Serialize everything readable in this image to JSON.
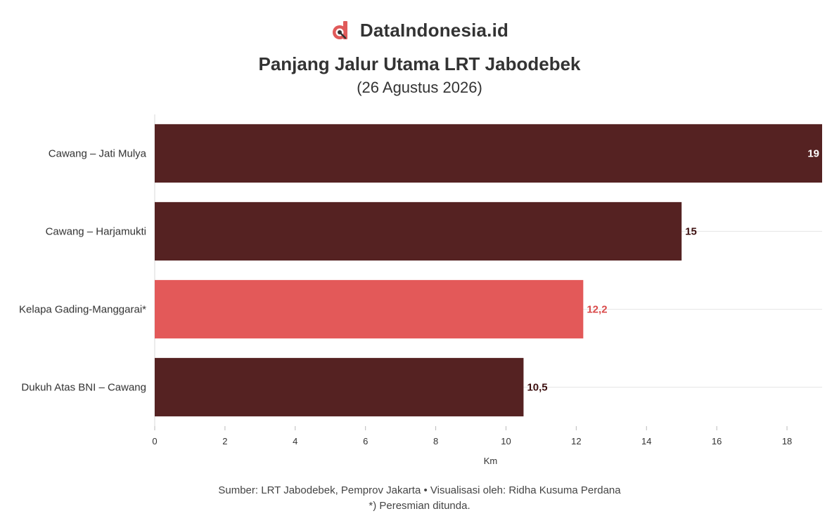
{
  "brand": {
    "name": "DataIndonesia.id",
    "logo_icon": "dataindonesia-logo-icon",
    "logo_color": "#e05a5a"
  },
  "chart_data": {
    "type": "bar",
    "orientation": "horizontal",
    "title": "Panjang Jalur Utama LRT Jabodebek",
    "subtitle": "(26 Agustus 2026)",
    "xlabel": "Km",
    "ylabel": "",
    "xlim": [
      0,
      19
    ],
    "xticks": [
      0,
      2,
      4,
      6,
      8,
      10,
      12,
      14,
      16,
      18
    ],
    "grid": true,
    "legend": "none",
    "categories": [
      "Cawang – Jati Mulya",
      "Cawang – Harjamukti",
      "Kelapa Gading-Manggarai*",
      "Dukuh Atas BNI – Cawang"
    ],
    "values": [
      19,
      15,
      12.2,
      10.5
    ],
    "value_labels": [
      "19",
      "15",
      "12,2",
      "10,5"
    ],
    "bar_colors": [
      "#552222",
      "#552222",
      "#e35959",
      "#552222"
    ],
    "label_colors": [
      "#ffffff",
      "#3d1010",
      "#d94a4a",
      "#3d1010"
    ]
  },
  "footer": {
    "source": "Sumber: LRT Jabodebek, Pemprov Jakarta • Visualisasi oleh: Ridha Kusuma Perdana",
    "note": "*) Peresmian ditunda."
  }
}
